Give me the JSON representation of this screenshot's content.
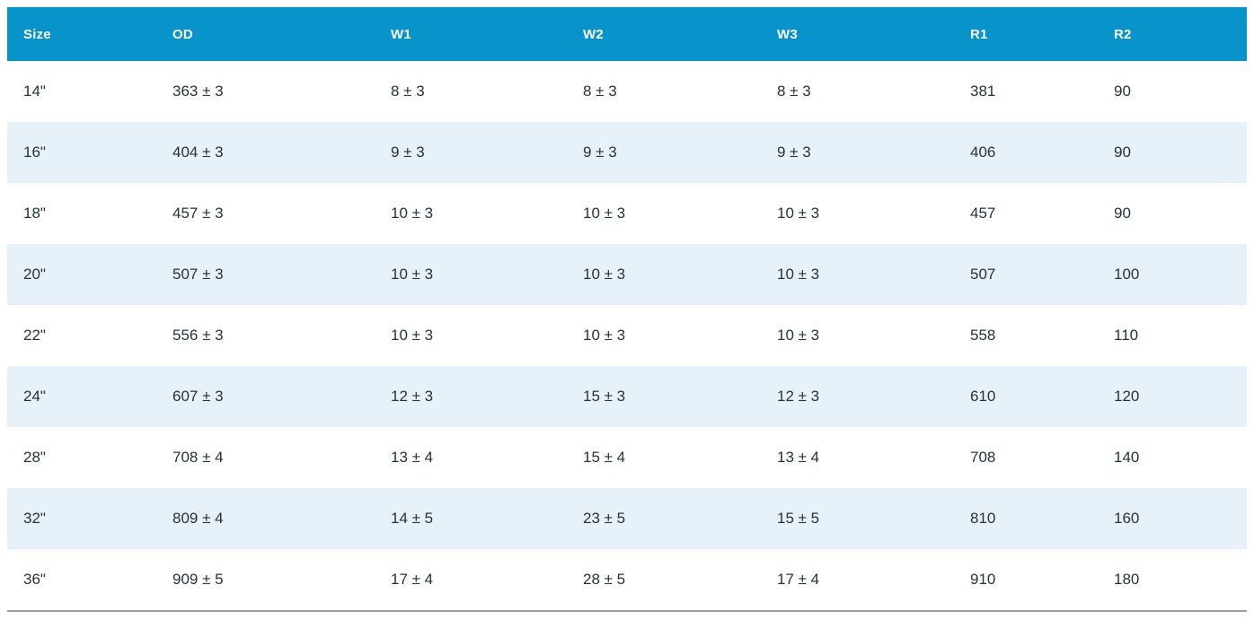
{
  "colors": {
    "header_bg": "#0893CA",
    "header_text": "#FFFFFF",
    "stripe_bg": "#E7F1F9",
    "row_bg": "#FFFFFF",
    "cell_text": "#263238",
    "bottom_rule": "#9E9E9E"
  },
  "chart_data": {
    "type": "table",
    "columns": [
      "Size",
      "OD",
      "W1",
      "W2",
      "W3",
      "R1",
      "R2"
    ],
    "rows": [
      [
        "14\"",
        "363 ± 3",
        "8 ± 3",
        "8 ± 3",
        "8 ± 3",
        "381",
        "90"
      ],
      [
        "16\"",
        "404 ± 3",
        "9 ± 3",
        "9 ± 3",
        "9 ± 3",
        "406",
        "90"
      ],
      [
        "18\"",
        "457 ± 3",
        "10 ± 3",
        "10 ± 3",
        "10 ± 3",
        "457",
        "90"
      ],
      [
        "20\"",
        "507 ± 3",
        "10 ± 3",
        "10 ± 3",
        "10 ± 3",
        "507",
        "100"
      ],
      [
        "22\"",
        "556 ± 3",
        "10 ± 3",
        "10 ± 3",
        "10 ± 3",
        "558",
        "110"
      ],
      [
        "24\"",
        "607 ± 3",
        "12 ± 3",
        "15 ± 3",
        "12 ± 3",
        "610",
        "120"
      ],
      [
        "28\"",
        "708 ± 4",
        "13 ± 4",
        "15 ± 4",
        "13 ± 4",
        "708",
        "140"
      ],
      [
        "32\"",
        "809 ± 4",
        "14 ± 5",
        "23 ± 5",
        "15 ± 5",
        "810",
        "160"
      ],
      [
        "36\"",
        "909 ± 5",
        "17 ± 4",
        "28 ± 5",
        "17 ± 4",
        "910",
        "180"
      ]
    ],
    "layout": {
      "striped_rows": "even",
      "header_position": "top",
      "grid": "off"
    }
  }
}
